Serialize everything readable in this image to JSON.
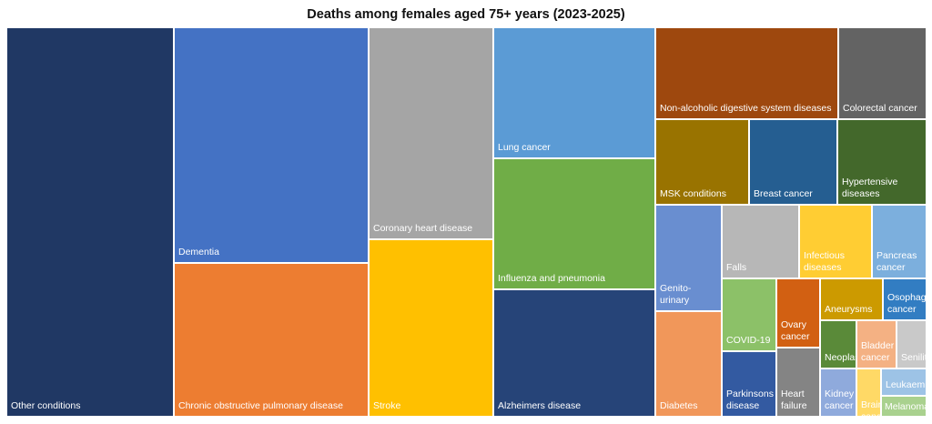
{
  "chart_data": {
    "type": "treemap",
    "title": "Deaths among females aged 75+ years (2023-2025)",
    "categories": [
      {
        "name": "Other conditions",
        "value": 78000,
        "color": "#203864"
      },
      {
        "name": "Dementia",
        "value": 49000,
        "color": "#4472C4"
      },
      {
        "name": "Chronic obstructive pulmonary disease",
        "value": 31400,
        "color": "#ED7D31"
      },
      {
        "name": "Coronary heart disease",
        "value": 23700,
        "color": "#A5A5A5"
      },
      {
        "name": "Stroke",
        "value": 20900,
        "color": "#FFC000"
      },
      {
        "name": "Lung cancer",
        "value": 15500,
        "color": "#5B9BD5"
      },
      {
        "name": "Influenza and pneumonia",
        "value": 15500,
        "color": "#70AD47"
      },
      {
        "name": "Alzheimers disease",
        "value": 15500,
        "color": "#264478"
      },
      {
        "name": "Non-alcoholic digestive system diseases",
        "value": 6800,
        "color": "#9E480E"
      },
      {
        "name": "Colorectal cancer",
        "value": 3400,
        "color": "#636363"
      },
      {
        "name": "MSK conditions",
        "value": 3400,
        "color": "#997300"
      },
      {
        "name": "Breast cancer",
        "value": 3300,
        "color": "#255E91"
      },
      {
        "name": "Hypertensive diseases",
        "value": 2800,
        "color": "#43682B"
      },
      {
        "name": "Genito-urinary",
        "value": 2700,
        "color": "#698ED0"
      },
      {
        "name": "Diabetes",
        "value": 2800,
        "color": "#F1975A"
      },
      {
        "name": "Falls",
        "value": 2000,
        "color": "#B7B7B7"
      },
      {
        "name": "Infectious diseases",
        "value": 1600,
        "color": "#FFCD33"
      },
      {
        "name": "Pancreas cancer",
        "value": 1500,
        "color": "#7CAFDD"
      },
      {
        "name": "COVID-19",
        "value": 1300,
        "color": "#8CC168"
      },
      {
        "name": "Parkinsons disease",
        "value": 1300,
        "color": "#335AA1"
      },
      {
        "name": "Ovary cancer",
        "value": 900,
        "color": "#D26012"
      },
      {
        "name": "Heart failure",
        "value": 1000,
        "color": "#848484"
      },
      {
        "name": "Aneurysms",
        "value": 600,
        "color": "#CC9A00"
      },
      {
        "name": "Osophagus cancer",
        "value": 600,
        "color": "#327DC2"
      },
      {
        "name": "Neoplasms",
        "value": 500,
        "color": "#5A8A39"
      },
      {
        "name": "Bladder cancer",
        "value": 300,
        "color": "#F4B183"
      },
      {
        "name": "Senility",
        "value": 300,
        "color": "#C9C9C9"
      },
      {
        "name": "Kidney cancer",
        "value": 350,
        "color": "#8FAADC"
      },
      {
        "name": "Brain cancer",
        "value": 250,
        "color": "#FFD966"
      },
      {
        "name": "Leukaemia",
        "value": 280,
        "color": "#9DC3E6"
      },
      {
        "name": "Melanoma",
        "value": 180,
        "color": "#A9D18E"
      }
    ]
  }
}
